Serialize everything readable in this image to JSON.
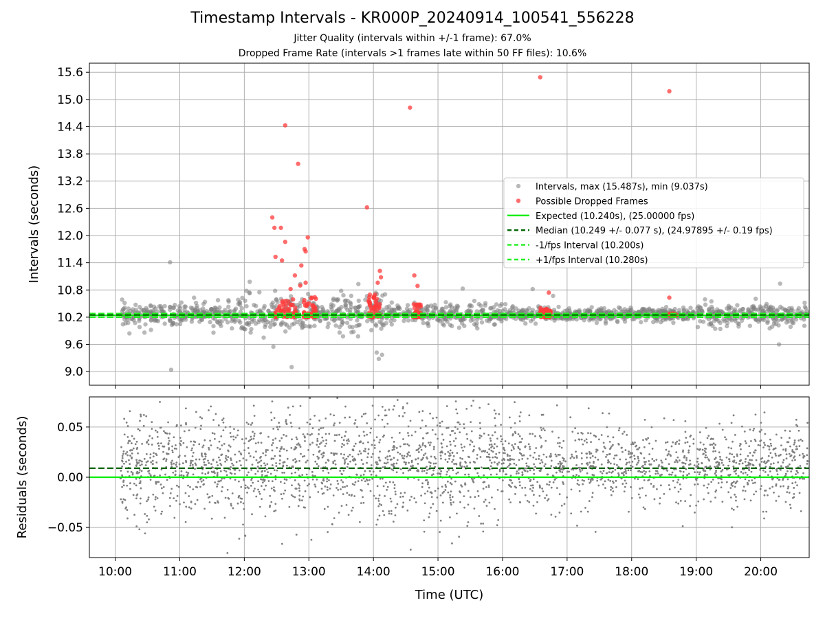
{
  "chart_data": [
    {
      "type": "scatter",
      "title": "Timestamp Intervals - KR000P_20240914_100541_556228",
      "subtitles": [
        "Jitter Quality (intervals within +/-1 frame): 67.0%",
        "Dropped Frame Rate (intervals >1 frames late within 50 FF files): 10.6%"
      ],
      "xlabel": "",
      "ylabel": "Intervals (seconds)",
      "ylim": [
        8.7,
        15.8
      ],
      "yticks": [
        "9.0",
        "9.6",
        "10.2",
        "10.8",
        "11.4",
        "12.0",
        "12.6",
        "13.2",
        "13.8",
        "14.4",
        "15.0",
        "15.6"
      ],
      "grid": true,
      "legend_position": "center-right",
      "legend": [
        "Intervals, max (15.487s), min (9.037s)",
        "Possible Dropped Frames",
        "Expected (10.240s), (25.00000 fps)",
        "Median (10.249 +/- 0.077 s), (24.97895 +/- 0.19 fps)",
        "-1/fps Interval (10.200s)",
        "+1/fps Interval (10.280s)"
      ],
      "series": [
        {
          "name": "Intervals, max (15.487s), min (9.037s)",
          "color": "#808080",
          "note_summary": "dense band around 10.24 s from 10:06 to 20:45",
          "points": [
            [
              "10:51",
              11.41
            ],
            [
              "10:52",
              9.04
            ],
            [
              "12:05",
              10.98
            ],
            [
              "12:14",
              10.75
            ],
            [
              "12:18",
              9.75
            ],
            [
              "12:27",
              9.55
            ],
            [
              "12:44",
              9.1
            ],
            [
              "12:52",
              10.93
            ],
            [
              "13:30",
              10.78
            ],
            [
              "13:46",
              10.93
            ],
            [
              "14:03",
              9.42
            ],
            [
              "14:08",
              9.37
            ],
            [
              "14:05",
              9.28
            ],
            [
              "15:23",
              10.83
            ],
            [
              "16:28",
              10.82
            ],
            [
              "16:47",
              10.67
            ],
            [
              "20:18",
              10.94
            ],
            [
              "20:17",
              9.6
            ]
          ]
        },
        {
          "name": "Possible Dropped Frames",
          "color": "#ff3b3b",
          "points": [
            [
              "12:26",
              12.4
            ],
            [
              "12:28",
              12.17
            ],
            [
              "12:34",
              12.17
            ],
            [
              "12:38",
              11.86
            ],
            [
              "12:29",
              11.53
            ],
            [
              "12:35",
              11.45
            ],
            [
              "12:38",
              14.43
            ],
            [
              "12:50",
              13.58
            ],
            [
              "12:56",
              11.7
            ],
            [
              "12:57",
              11.65
            ],
            [
              "12:59",
              11.96
            ],
            [
              "12:53",
              11.34
            ],
            [
              "12:47",
              11.12
            ],
            [
              "12:57",
              10.96
            ],
            [
              "12:52",
              10.9
            ],
            [
              "12:43",
              10.82
            ],
            [
              "13:54",
              12.62
            ],
            [
              "14:06",
              11.22
            ],
            [
              "14:07",
              11.08
            ],
            [
              "14:04",
              10.96
            ],
            [
              "14:34",
              14.82
            ],
            [
              "14:38",
              11.12
            ],
            [
              "14:41",
              10.89
            ],
            [
              "16:35",
              15.49
            ],
            [
              "16:43",
              10.74
            ],
            [
              "18:35",
              15.18
            ],
            [
              "18:35",
              10.63
            ]
          ],
          "clusters": [
            [
              "12:28",
              "12:48",
              10.2,
              10.6
            ],
            [
              "12:55",
              "13:07",
              10.2,
              10.7
            ],
            [
              "13:55",
              "14:07",
              10.2,
              10.7
            ],
            [
              "14:37",
              "14:44",
              10.2,
              10.5
            ],
            [
              "16:35",
              "16:45",
              10.2,
              10.4
            ],
            [
              "18:35",
              "18:42",
              10.24,
              10.28
            ]
          ]
        },
        {
          "name": "Expected (10.240s), (25.00000 fps)",
          "color": "#00ee00",
          "style": "solid",
          "y": 10.24
        },
        {
          "name": "Median (10.249 +/- 0.077 s), (24.97895 +/- 0.19 fps)",
          "color": "#006400",
          "style": "dashed",
          "y": 10.249
        },
        {
          "name": "-1/fps Interval (10.200s)",
          "color": "#22ee22",
          "style": "dashed",
          "y": 10.2
        },
        {
          "name": "+1/fps Interval (10.280s)",
          "color": "#22ee22",
          "style": "dashed",
          "y": 10.28
        }
      ]
    },
    {
      "type": "scatter",
      "title": "",
      "xlabel": "Time (UTC)",
      "ylabel": "Residuals (seconds)",
      "ylim": [
        -0.08,
        0.08
      ],
      "yticks": [
        "−0.05",
        "0.00",
        "0.05"
      ],
      "xticks": [
        "10:00",
        "11:00",
        "12:00",
        "13:00",
        "14:00",
        "15:00",
        "16:00",
        "17:00",
        "18:00",
        "19:00",
        "20:00"
      ],
      "grid": true,
      "series": [
        {
          "name": "",
          "color": "#808080",
          "note_summary": "residual scatter from 10:06 to 20:45, denser and narrower (about -0.03 to 0.04) after 16:00"
        },
        {
          "name": "",
          "color": "#00ee00",
          "style": "solid",
          "y": 0.0
        },
        {
          "name": "",
          "color": "#006400",
          "style": "dashed",
          "y": 0.009
        }
      ]
    }
  ]
}
